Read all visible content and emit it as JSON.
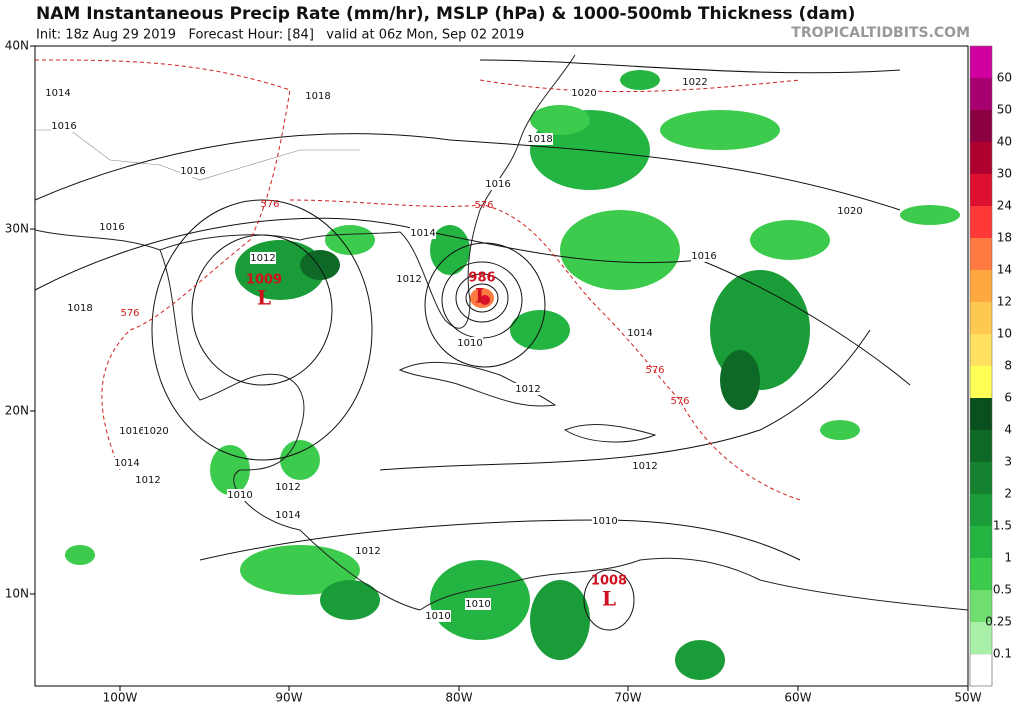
{
  "header": {
    "title": "NAM Instantaneous Precip Rate (mm/hr), MSLP (hPa) & 1000-500mb Thickness (dam)",
    "subtitle": "Init: 18z Aug 29 2019   Forecast Hour: [84]   valid at 06z Mon, Sep 02 2019",
    "watermark": "TROPICALTIDBITS.COM"
  },
  "map": {
    "lat_labels": [
      "40N",
      "30N",
      "20N",
      "10N"
    ],
    "lon_labels": [
      "100W",
      "90W",
      "80W",
      "70W",
      "60W",
      "50W"
    ],
    "isobar_labels": [
      "1014",
      "1018",
      "1020",
      "1022",
      "1016",
      "1018",
      "1016",
      "1016",
      "1020",
      "1016",
      "1014",
      "1012",
      "1016",
      "1012",
      "1010",
      "1014",
      "1018",
      "1012",
      "1016",
      "1020",
      "1014",
      "1012",
      "1012",
      "1010",
      "1012",
      "1014",
      "1010",
      "1012",
      "1010",
      "1010"
    ],
    "thickness_labels": [
      "576",
      "576",
      "576",
      "576",
      "576"
    ],
    "centers": [
      {
        "pressure": "1009",
        "symbol": "L"
      },
      {
        "pressure": "986",
        "symbol": "L"
      },
      {
        "pressure": "1008",
        "symbol": "L"
      }
    ]
  },
  "colorbar": {
    "below_color": "#ffffff",
    "levels": [
      {
        "label": "0.1",
        "color": "#a8f0a8"
      },
      {
        "label": "0.25",
        "color": "#70dd70"
      },
      {
        "label": "0.5",
        "color": "#3ccb4c"
      },
      {
        "label": "1",
        "color": "#24b442"
      },
      {
        "label": "1.5",
        "color": "#1a9c38"
      },
      {
        "label": "2",
        "color": "#14822e"
      },
      {
        "label": "3",
        "color": "#0e6826"
      },
      {
        "label": "4",
        "color": "#0a4f1e"
      },
      {
        "label": "6",
        "color": "#ffff55"
      },
      {
        "label": "8",
        "color": "#ffe060"
      },
      {
        "label": "10",
        "color": "#ffc850"
      },
      {
        "label": "12",
        "color": "#ffa840"
      },
      {
        "label": "14",
        "color": "#ff7a40"
      },
      {
        "label": "18",
        "color": "#ff3838"
      },
      {
        "label": "24",
        "color": "#dd1030"
      },
      {
        "label": "30",
        "color": "#b00030"
      },
      {
        "label": "40",
        "color": "#8a0040"
      },
      {
        "label": "50",
        "color": "#a80070"
      },
      {
        "label": "60",
        "color": "#d000a0"
      }
    ]
  }
}
